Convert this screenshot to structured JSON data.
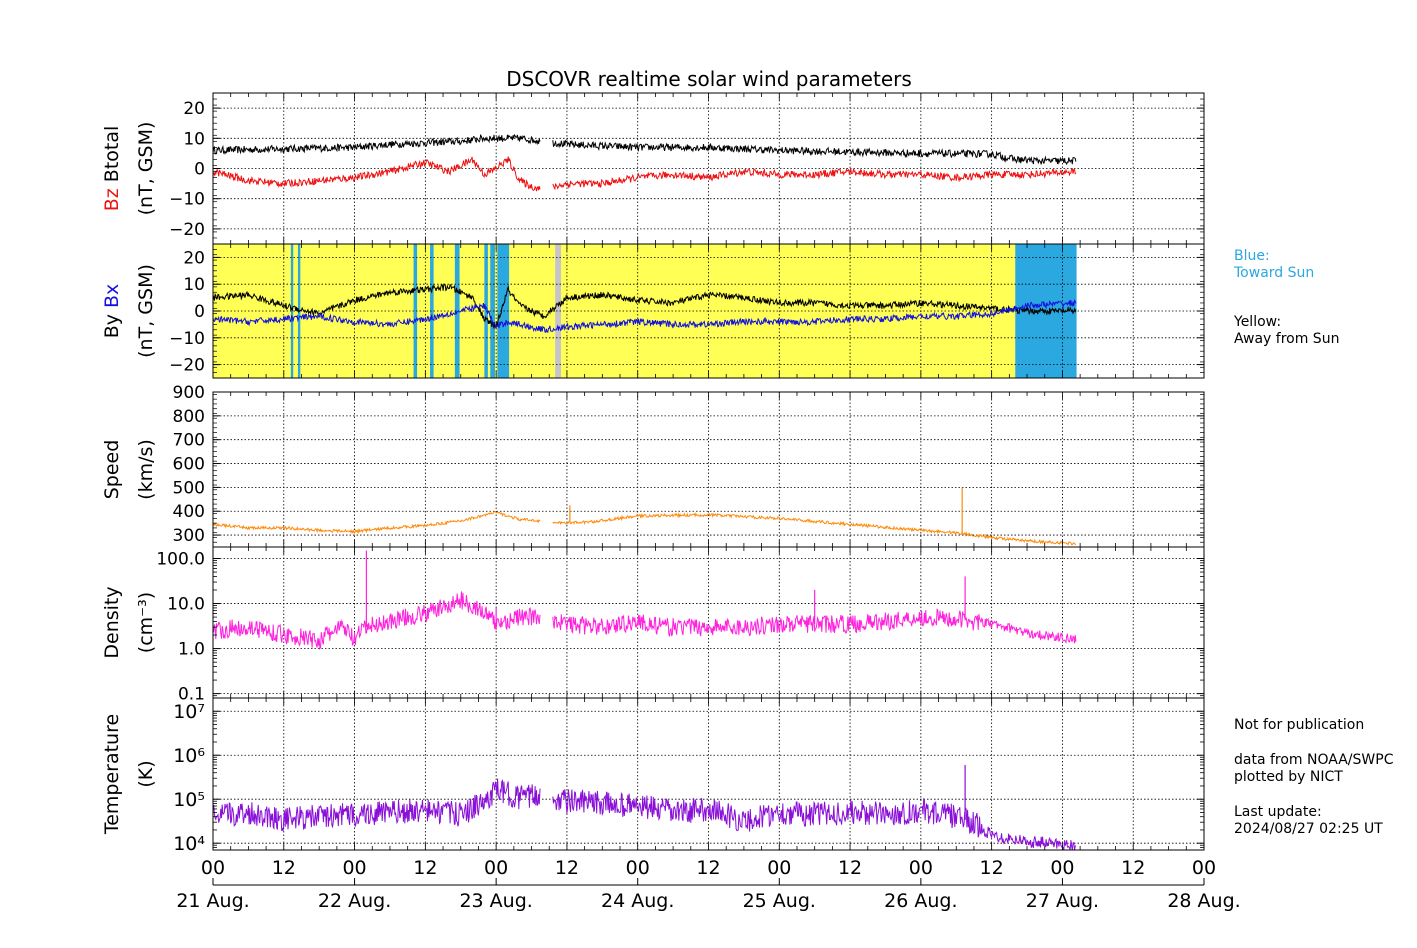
{
  "title": "DSCOVR realtime solar wind parameters",
  "colors": {
    "bz": "#ee1111",
    "btotal": "#000000",
    "bx": "#1111dd",
    "by": "#000000",
    "speed": "#ff8a0a",
    "density": "#ff22dd",
    "temperature": "#8a10d8",
    "away_bg": "#ffff55",
    "toward_bg": "#2ca8e0",
    "gap_bg": "#c8c4cc"
  },
  "legend_notes": {
    "blue_label": "Blue:",
    "blue_text": "Toward Sun",
    "yellow_label": "Yellow:",
    "yellow_text": "Away from Sun"
  },
  "footer_notes": {
    "publication": "Not for publication",
    "source": "data from NOAA/SWPC",
    "plotted": "plotted by NICT",
    "update_label": "Last update:",
    "update_time": "2024/08/27 02:25 UT"
  },
  "chart_data": {
    "type": "line",
    "x_axis": {
      "unit": "hours since 21 Aug. 00 UT",
      "range": [
        0,
        168
      ],
      "tick_labels": [
        "00",
        "12",
        "00",
        "12",
        "00",
        "12",
        "00",
        "12",
        "00",
        "12",
        "00",
        "12",
        "00",
        "12",
        "00"
      ],
      "date_labels": [
        "21 Aug.",
        "22 Aug.",
        "23 Aug.",
        "24 Aug.",
        "25 Aug.",
        "26 Aug.",
        "27 Aug.",
        "28 Aug."
      ],
      "data_end_hours": 146.4
    },
    "panels": [
      {
        "id": "mag-total",
        "ylabel_parts": [
          "Bz",
          "Btotal"
        ],
        "yunit": "(nT, GSM)",
        "ylim": [
          -25,
          25
        ],
        "yticks": [
          -20,
          -10,
          0,
          10,
          20
        ],
        "ytick_labels": [
          "−20",
          "−10",
          "0",
          "10",
          "20"
        ],
        "grid": true,
        "series": [
          {
            "name": "Btotal",
            "color_key": "btotal",
            "x": [
              0,
              12,
              24,
              30,
              36,
              42,
              46,
              49,
              52,
              56,
              60,
              66,
              72,
              84,
              96,
              108,
              120,
              132,
              136,
              140,
              146
            ],
            "y": [
              6,
              6.5,
              7,
              8,
              8.5,
              9,
              10,
              10,
              10,
              9,
              8,
              7.5,
              7,
              7,
              6,
              5.5,
              5,
              4.8,
              3,
              2.5,
              2.5
            ]
          },
          {
            "name": "Bz",
            "color_key": "bz",
            "x": [
              0,
              6,
              12,
              18,
              24,
              30,
              36,
              40,
              44,
              46,
              48,
              50,
              52,
              54,
              56,
              60,
              66,
              72,
              78,
              84,
              90,
              96,
              102,
              108,
              114,
              120,
              126,
              132,
              138,
              146
            ],
            "y": [
              -1,
              -4,
              -5,
              -4,
              -3,
              -1,
              2,
              -1,
              3,
              -2,
              0,
              3,
              -4,
              -6,
              -7,
              -5,
              -5,
              -3,
              -2,
              -3,
              -1,
              -2,
              -2,
              -1,
              -2,
              -2,
              -3,
              -2,
              -2,
              -1
            ]
          }
        ]
      },
      {
        "id": "mag-xy",
        "ylabel_parts": [
          "By",
          "Bx"
        ],
        "yunit": "(nT, GSM)",
        "ylim": [
          -25,
          25
        ],
        "yticks": [
          -20,
          -10,
          0,
          10,
          20
        ],
        "ytick_labels": [
          "−20",
          "−10",
          "0",
          "10",
          "20"
        ],
        "grid": true,
        "sector_bands": [
          {
            "from": 0,
            "to": 136,
            "kind": "away_bg"
          },
          {
            "from": 13.2,
            "to": 13.6,
            "kind": "toward_bg"
          },
          {
            "from": 14.4,
            "to": 14.8,
            "kind": "toward_bg"
          },
          {
            "from": 34.0,
            "to": 34.6,
            "kind": "toward_bg"
          },
          {
            "from": 36.8,
            "to": 37.4,
            "kind": "toward_bg"
          },
          {
            "from": 41.0,
            "to": 41.8,
            "kind": "toward_bg"
          },
          {
            "from": 46.0,
            "to": 46.6,
            "kind": "toward_bg"
          },
          {
            "from": 47.0,
            "to": 47.8,
            "kind": "toward_bg"
          },
          {
            "from": 48.2,
            "to": 50.2,
            "kind": "toward_bg"
          },
          {
            "from": 58.0,
            "to": 59.0,
            "kind": "gap_bg"
          },
          {
            "from": 136,
            "to": 146.4,
            "kind": "toward_bg"
          }
        ],
        "series": [
          {
            "name": "By",
            "color_key": "by",
            "x": [
              0,
              6,
              12,
              18,
              24,
              30,
              36,
              40,
              44,
              46,
              48,
              50,
              52,
              56,
              60,
              66,
              72,
              78,
              84,
              90,
              96,
              102,
              108,
              114,
              120,
              126,
              132,
              138,
              146
            ],
            "y": [
              5,
              6,
              2,
              -1,
              4,
              7,
              8,
              9,
              5,
              -3,
              -6,
              8,
              2,
              -2,
              5,
              6,
              4,
              3,
              6,
              5,
              3,
              3,
              2,
              2,
              3,
              2,
              1,
              0,
              0
            ]
          },
          {
            "name": "Bx",
            "color_key": "bx",
            "x": [
              0,
              6,
              12,
              18,
              24,
              30,
              36,
              42,
              46,
              48,
              50,
              56,
              60,
              66,
              72,
              78,
              84,
              90,
              96,
              102,
              108,
              114,
              120,
              126,
              132,
              138,
              146
            ],
            "y": [
              -3,
              -4,
              -3,
              -2,
              -4,
              -5,
              -3,
              0,
              2,
              -6,
              -4,
              -7,
              -6,
              -5,
              -4,
              -5,
              -5,
              -4,
              -4,
              -4,
              -3,
              -3,
              -2,
              -2,
              -1,
              2,
              3
            ]
          }
        ]
      },
      {
        "id": "speed",
        "ylabel_parts": [
          "Speed"
        ],
        "yunit": "(km/s)",
        "ylim": [
          250,
          900
        ],
        "yticks": [
          300,
          400,
          500,
          600,
          700,
          800,
          900
        ],
        "ytick_labels": [
          "300",
          "400",
          "500",
          "600",
          "700",
          "800",
          "900"
        ],
        "grid": true,
        "series": [
          {
            "name": "Speed",
            "color_key": "speed",
            "x": [
              0,
              6,
              12,
              18,
              24,
              30,
              36,
              42,
              48,
              52,
              56,
              58,
              64,
              72,
              84,
              96,
              108,
              120,
              126,
              132,
              138,
              146
            ],
            "y": [
              345,
              330,
              330,
              320,
              315,
              330,
              340,
              360,
              395,
              365,
              360,
              350,
              355,
              380,
              385,
              370,
              345,
              320,
              310,
              290,
              275,
              265
            ]
          }
        ],
        "spikes": [
          {
            "x": 60.5,
            "y": 425
          },
          {
            "x": 127,
            "y": 500
          }
        ]
      },
      {
        "id": "density",
        "ylabel_parts": [
          "Density"
        ],
        "yunit": "(cm⁻³)",
        "yscale": "log",
        "ylim": [
          0.08,
          180
        ],
        "yticks": [
          0.1,
          1.0,
          10.0,
          100.0
        ],
        "ytick_labels": [
          "0.1",
          "1.0",
          "10.0",
          "100.0"
        ],
        "grid": true,
        "series": [
          {
            "name": "Density",
            "color_key": "density",
            "x": [
              0,
              6,
              12,
              18,
              22,
              24,
              26,
              30,
              36,
              40,
              42,
              46,
              48,
              52,
              56,
              60,
              66,
              72,
              76,
              84,
              90,
              96,
              102,
              108,
              114,
              120,
              126,
              132,
              138,
              146
            ],
            "y": [
              2.5,
              3,
              2,
              1.5,
              3,
              1.5,
              3,
              4,
              6,
              9,
              12,
              6,
              3.5,
              5,
              5,
              3.5,
              3,
              4,
              3,
              3,
              3,
              3.5,
              3.5,
              3.5,
              4,
              5,
              4.5,
              3.5,
              2.2,
              1.6
            ]
          }
        ],
        "spikes": [
          {
            "x": 26,
            "y": 150
          },
          {
            "x": 48,
            "y": 8
          },
          {
            "x": 102,
            "y": 20
          },
          {
            "x": 127.5,
            "y": 40
          }
        ]
      },
      {
        "id": "temperature",
        "ylabel_parts": [
          "Temperature"
        ],
        "yunit": "(K)",
        "yscale": "log",
        "ylim": [
          7000,
          20000000
        ],
        "yticks": [
          10000,
          100000,
          1000000,
          10000000
        ],
        "ytick_labels": [
          "10⁴",
          "10⁵",
          "10⁶",
          "10⁷"
        ],
        "grid": true,
        "series": [
          {
            "name": "Temperature",
            "color_key": "temperature",
            "x": [
              0,
              6,
              12,
              18,
              24,
              30,
              36,
              42,
              46,
              48,
              52,
              56,
              60,
              66,
              72,
              78,
              84,
              90,
              96,
              102,
              108,
              114,
              120,
              126,
              132,
              138,
              146
            ],
            "y": [
              40000,
              50000,
              35000,
              40000,
              45000,
              50000,
              55000,
              45000,
              80000,
              160000,
              110000,
              120000,
              90000,
              80000,
              70000,
              50000,
              60000,
              30000,
              50000,
              45000,
              50000,
              45000,
              55000,
              40000,
              15000,
              11000,
              9000
            ]
          }
        ],
        "spikes": [
          {
            "x": 127.5,
            "y": 600000
          }
        ]
      }
    ]
  }
}
